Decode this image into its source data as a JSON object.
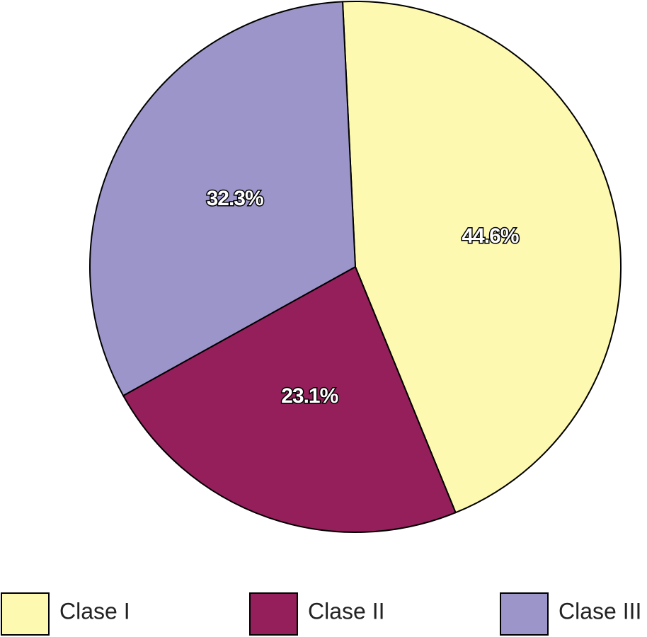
{
  "chart_data": {
    "type": "pie",
    "categories": [
      "Clase I",
      "Clase II",
      "Clase III"
    ],
    "values": [
      44.6,
      23.1,
      32.3
    ],
    "value_labels": [
      "44.6%",
      "23.1%",
      "32.3%"
    ],
    "colors": [
      "#fdf9b0",
      "#951f5b",
      "#9b95c9"
    ],
    "legend": "bottom"
  }
}
